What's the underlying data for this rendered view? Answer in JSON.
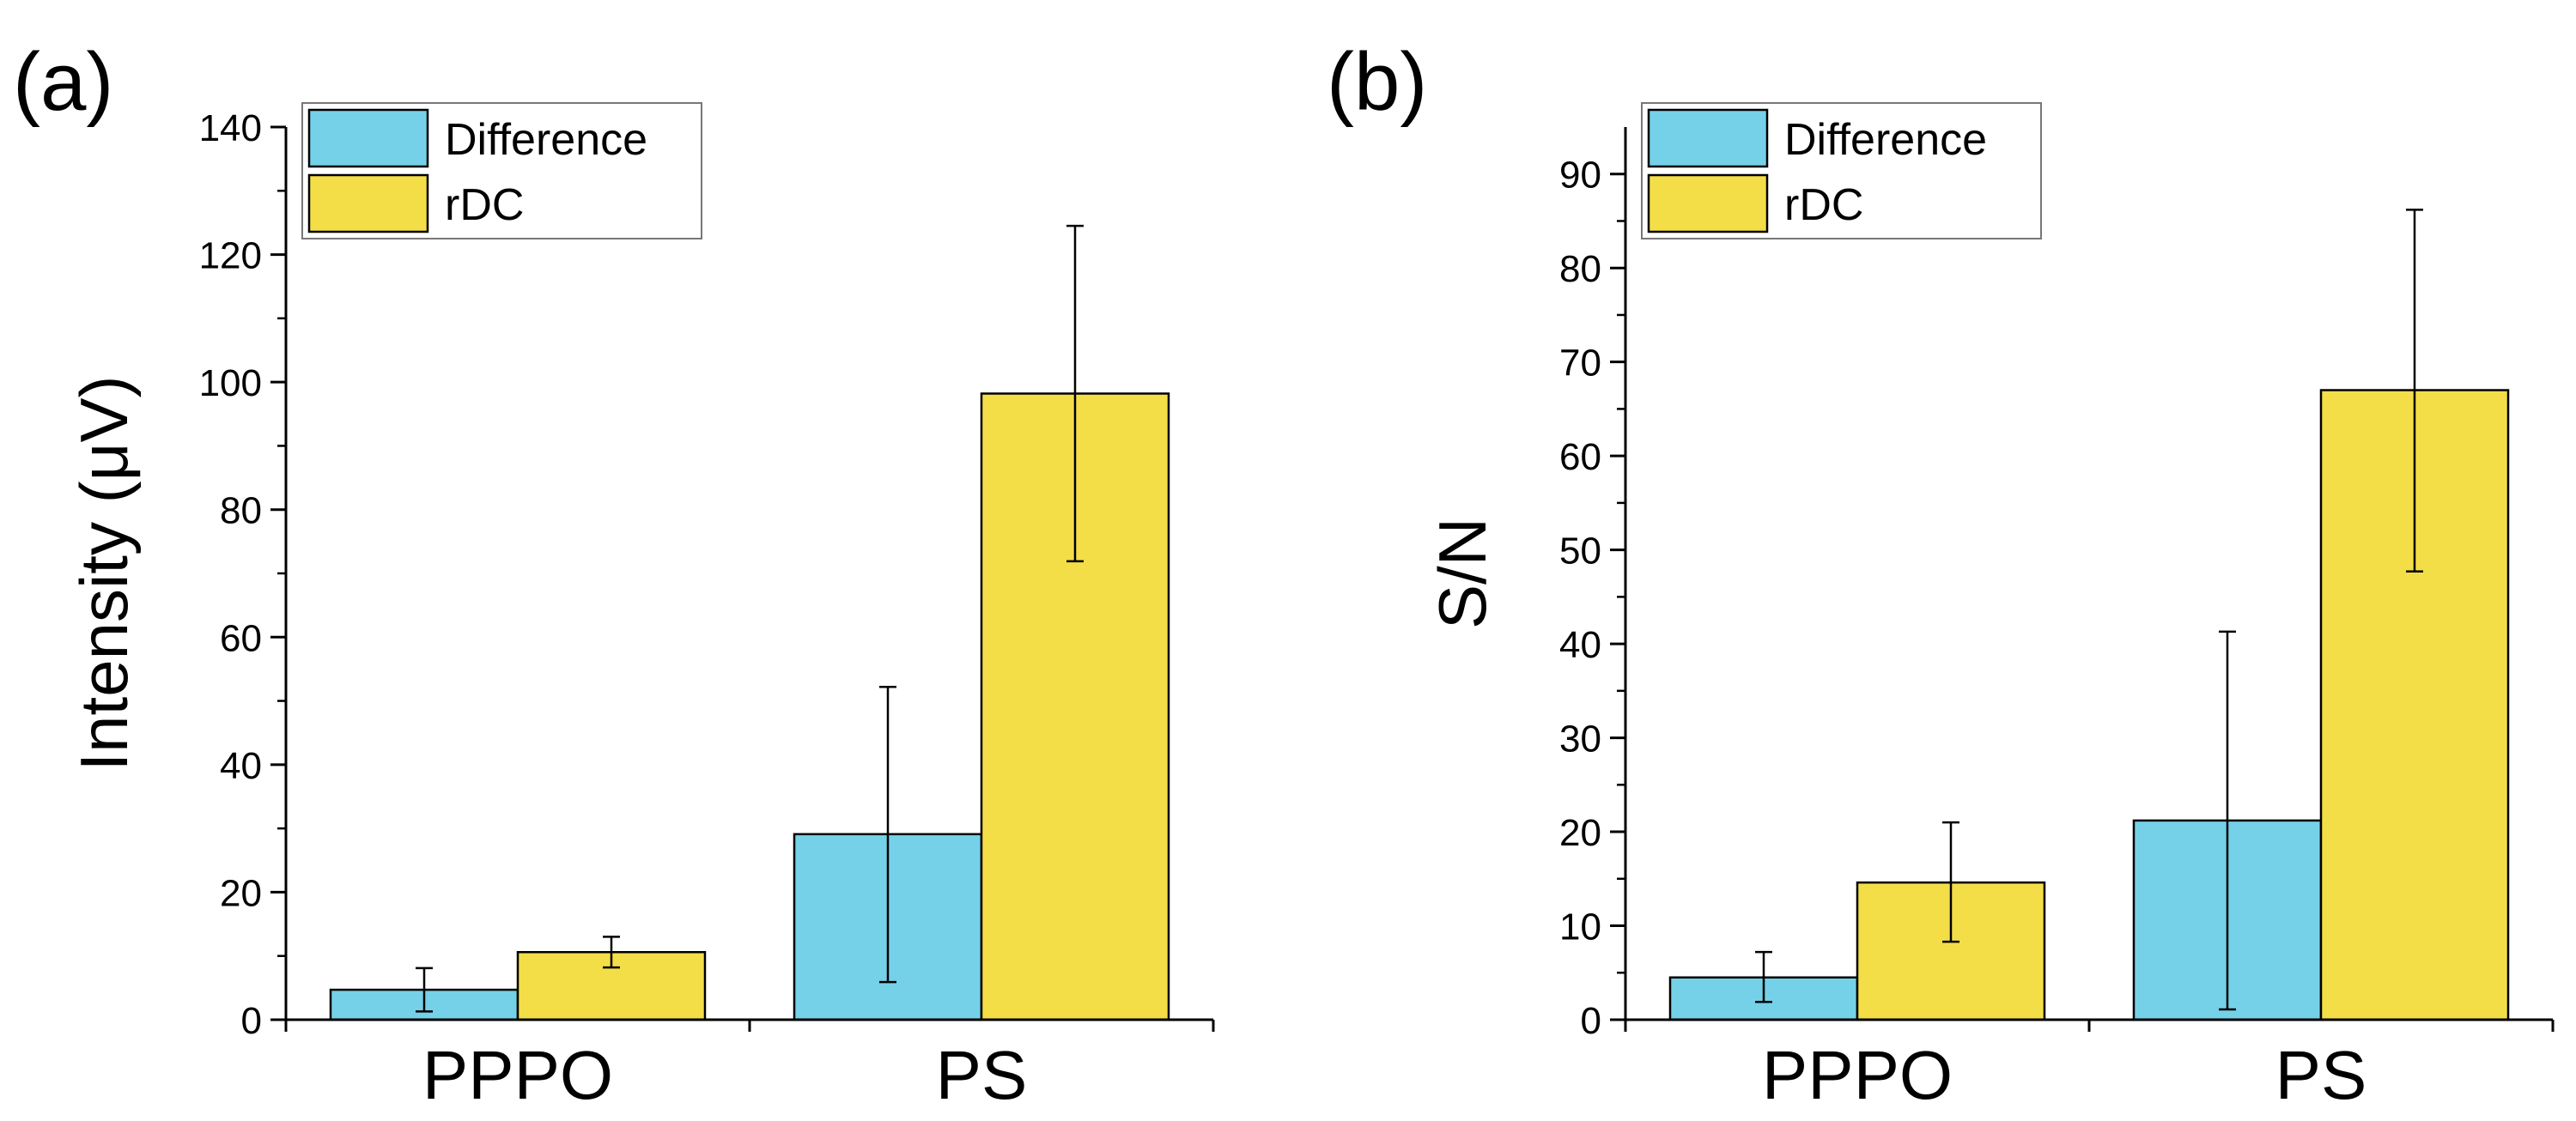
{
  "figure": {
    "colors": {
      "difference": "#75D1E8",
      "rdc": "#F4DE48",
      "axis": "#000000"
    }
  },
  "chart_data": [
    {
      "type": "bar",
      "panel_label": "(a)",
      "title": "",
      "xlabel": "",
      "ylabel": "Intensity (μV)",
      "categories": [
        "PPPO",
        "PS"
      ],
      "ylim": [
        0,
        140
      ],
      "yticks": [
        0,
        20,
        40,
        60,
        80,
        100,
        120,
        140
      ],
      "ytick_labels": [
        "0",
        "20",
        "40",
        "60",
        "80",
        "100",
        "120",
        "140"
      ],
      "minor_ticks": true,
      "grid": false,
      "legend_position": "top-left",
      "series": [
        {
          "name": "Difference",
          "color": "#75D1E8",
          "values": [
            4.7,
            29.1
          ],
          "err_low": [
            1.3,
            5.9
          ],
          "err_high": [
            8.1,
            52.2
          ]
        },
        {
          "name": "rDC",
          "color": "#F4DE48",
          "values": [
            10.6,
            98.2
          ],
          "err_low": [
            8.2,
            71.9
          ],
          "err_high": [
            13.0,
            124.5
          ]
        }
      ]
    },
    {
      "type": "bar",
      "panel_label": "(b)",
      "title": "",
      "xlabel": "",
      "ylabel": "S/N",
      "categories": [
        "PPPO",
        "PS"
      ],
      "ylim": [
        0,
        95
      ],
      "yticks": [
        0,
        10,
        20,
        30,
        40,
        50,
        60,
        70,
        80,
        90
      ],
      "ytick_labels": [
        "0",
        "10",
        "20",
        "30",
        "40",
        "50",
        "60",
        "70",
        "80",
        "90"
      ],
      "minor_ticks": true,
      "grid": false,
      "legend_position": "top-left",
      "series": [
        {
          "name": "Difference",
          "color": "#75D1E8",
          "values": [
            4.5,
            21.2
          ],
          "err_low": [
            1.9,
            1.1
          ],
          "err_high": [
            7.2,
            41.3
          ]
        },
        {
          "name": "rDC",
          "color": "#F4DE48",
          "values": [
            14.6,
            67.0
          ],
          "err_low": [
            8.3,
            47.7
          ],
          "err_high": [
            21.0,
            86.2
          ]
        }
      ]
    }
  ]
}
